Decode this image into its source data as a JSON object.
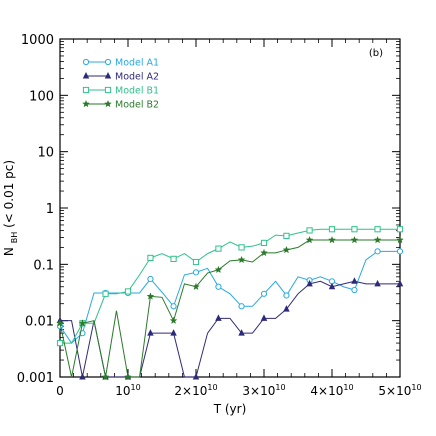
{
  "chart_data": {
    "type": "line",
    "panel_label": "(b)",
    "xlabel": "T (yr)",
    "ylabel_main": "N",
    "ylabel_sub": "BH",
    "ylabel_rest": " (< 0.01 pc)",
    "xlim": [
      0,
      50000000000
    ],
    "ylim": [
      0.001,
      1000
    ],
    "yscale": "log",
    "x_ticks": [
      {
        "value": 0,
        "mantissa": "0",
        "exponent": ""
      },
      {
        "value": 10000000000,
        "mantissa": "10",
        "exponent": "10"
      },
      {
        "value": 20000000000,
        "mantissa": "2×10",
        "exponent": "10"
      },
      {
        "value": 30000000000,
        "mantissa": "3×10",
        "exponent": "10"
      },
      {
        "value": 40000000000,
        "mantissa": "4×10",
        "exponent": "10"
      },
      {
        "value": 50000000000,
        "mantissa": "5×10",
        "exponent": "10"
      }
    ],
    "y_ticks": [
      {
        "value": 0.001,
        "label": "0.001"
      },
      {
        "value": 0.01,
        "label": "0.01"
      },
      {
        "value": 0.1,
        "label": "0.1"
      },
      {
        "value": 1,
        "label": "1"
      },
      {
        "value": 10,
        "label": "10"
      },
      {
        "value": 100,
        "label": "100"
      },
      {
        "value": 1000,
        "label": "1000"
      }
    ],
    "legend_position": "top-left",
    "series": [
      {
        "name": "Model A1",
        "color": "#29a9e1",
        "marker": "circle",
        "x": [
          0,
          1700000000,
          3300000000,
          5000000000,
          6700000000,
          8300000000,
          10000000000,
          11700000000,
          13300000000,
          15000000000,
          16700000000,
          18300000000,
          20000000000,
          21700000000,
          23300000000,
          25000000000,
          26700000000,
          28300000000,
          30000000000,
          31700000000,
          33300000000,
          35000000000,
          36700000000,
          38300000000,
          40000000000,
          41700000000,
          43300000000,
          45000000000,
          46700000000,
          48300000000,
          50000000000
        ],
        "y": [
          0.008,
          0.004,
          0.006,
          0.031,
          0.031,
          0.031,
          0.031,
          0.031,
          0.055,
          0.032,
          0.018,
          0.065,
          0.072,
          0.085,
          0.04,
          0.03,
          0.018,
          0.018,
          0.03,
          0.05,
          0.028,
          0.06,
          0.052,
          0.06,
          0.05,
          0.04,
          0.035,
          0.12,
          0.17,
          0.17,
          0.17
        ]
      },
      {
        "name": "Model A2",
        "color": "#2e2a7a",
        "marker": "triangle",
        "x": [
          0,
          1700000000,
          3300000000,
          5000000000,
          6700000000,
          8300000000,
          10000000000,
          11700000000,
          13300000000,
          15000000000,
          16700000000,
          18300000000,
          20000000000,
          21700000000,
          23300000000,
          25000000000,
          26700000000,
          28300000000,
          30000000000,
          31700000000,
          33300000000,
          35000000000,
          36700000000,
          38300000000,
          40000000000,
          41700000000,
          43300000000,
          45000000000,
          46700000000,
          48300000000,
          50000000000
        ],
        "y": [
          0.01,
          0.01,
          0.001,
          0.01,
          0.001,
          0.001,
          0.001,
          0.001,
          0.006,
          0.006,
          0.006,
          0.001,
          0.001,
          0.006,
          0.011,
          0.011,
          0.006,
          0.006,
          0.011,
          0.011,
          0.016,
          0.03,
          0.045,
          0.05,
          0.04,
          0.045,
          0.05,
          0.045,
          0.045,
          0.045,
          0.045
        ]
      },
      {
        "name": "Model B1",
        "color": "#2fc28b",
        "marker": "square",
        "x": [
          0,
          1700000000,
          3300000000,
          5000000000,
          6700000000,
          8300000000,
          10000000000,
          11700000000,
          13300000000,
          15000000000,
          16700000000,
          18300000000,
          20000000000,
          21700000000,
          23300000000,
          25000000000,
          26700000000,
          28300000000,
          30000000000,
          31700000000,
          33300000000,
          35000000000,
          36700000000,
          38300000000,
          40000000000,
          41700000000,
          43300000000,
          45000000000,
          46700000000,
          48300000000,
          50000000000
        ],
        "y": [
          0.004,
          0.004,
          0.009,
          0.009,
          0.03,
          0.03,
          0.033,
          0.065,
          0.13,
          0.155,
          0.125,
          0.155,
          0.11,
          0.155,
          0.19,
          0.25,
          0.2,
          0.21,
          0.24,
          0.33,
          0.32,
          0.36,
          0.4,
          0.42,
          0.42,
          0.42,
          0.42,
          0.42,
          0.42,
          0.42,
          0.42
        ]
      },
      {
        "name": "Model B2",
        "color": "#2a7a2a",
        "marker": "star",
        "x": [
          0,
          1700000000,
          3300000000,
          5000000000,
          6700000000,
          8300000000,
          10000000000,
          11700000000,
          13300000000,
          15000000000,
          16700000000,
          18300000000,
          20000000000,
          21700000000,
          23300000000,
          25000000000,
          26700000000,
          28300000000,
          30000000000,
          31700000000,
          33300000000,
          35000000000,
          36700000000,
          38300000000,
          40000000000,
          41700000000,
          43300000000,
          45000000000,
          46700000000,
          48300000000,
          50000000000
        ],
        "y": [
          0.009,
          0.001,
          0.009,
          0.01,
          0.001,
          0.015,
          0.001,
          0.001,
          0.027,
          0.026,
          0.01,
          0.045,
          0.04,
          0.07,
          0.08,
          0.115,
          0.12,
          0.11,
          0.16,
          0.16,
          0.18,
          0.2,
          0.27,
          0.27,
          0.27,
          0.27,
          0.27,
          0.27,
          0.27,
          0.27,
          0.27
        ]
      }
    ]
  }
}
